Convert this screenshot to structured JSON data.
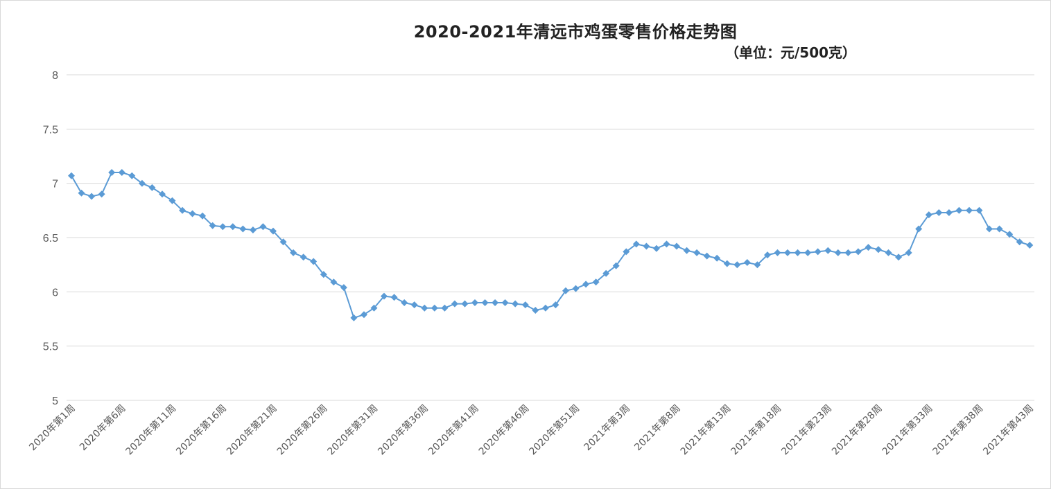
{
  "chart_data": {
    "type": "line",
    "title": "2020-2021年清远市鸡蛋零售价格走势图",
    "subtitle": "（单位：元/500克）",
    "xlabel": "",
    "ylabel": "",
    "ylim": [
      5,
      8
    ],
    "yticks": [
      "5",
      "5.5",
      "6",
      "6.5",
      "7",
      "7.5",
      "8"
    ],
    "grid": true,
    "legend": "none",
    "color": "#5b9bd5",
    "tick_labels": [
      "2020年第1周",
      "2020年第6周",
      "2020年第11周",
      "2020年第16周",
      "2020年第21周",
      "2020年第26周",
      "2020年第31周",
      "2020年第36周",
      "2020年第41周",
      "2020年第46周",
      "2020年第51周",
      "2021年第3周",
      "2021年第8周",
      "2021年第13周",
      "2021年第18周",
      "2021年第23周",
      "2021年第28周",
      "2021年第33周",
      "2021年第38周",
      "2021年第43周"
    ],
    "series": [
      {
        "values": [
          7.07,
          6.91,
          6.88,
          6.9,
          7.1,
          7.1,
          7.07,
          7.0,
          6.96,
          6.9,
          6.84,
          6.75,
          6.72,
          6.7,
          6.61,
          6.6,
          6.6,
          6.58,
          6.57,
          6.6,
          6.56,
          6.46,
          6.36,
          6.32,
          6.28,
          6.16,
          6.09,
          6.04,
          5.76,
          5.79,
          5.85,
          5.96,
          5.95,
          5.9,
          5.88,
          5.85,
          5.85,
          5.85,
          5.89,
          5.89,
          5.9,
          5.9,
          5.9,
          5.9,
          5.89,
          5.88,
          5.83,
          5.85,
          5.88,
          6.01,
          6.03,
          6.07,
          6.09,
          6.17,
          6.24,
          6.37,
          6.44,
          6.42,
          6.4,
          6.44,
          6.42,
          6.38,
          6.36,
          6.33,
          6.31,
          6.26,
          6.25,
          6.27,
          6.25,
          6.34,
          6.36,
          6.36,
          6.36,
          6.36,
          6.37,
          6.38,
          6.36,
          6.36,
          6.37,
          6.41,
          6.39,
          6.36,
          6.32,
          6.36,
          6.58,
          6.71,
          6.73,
          6.73,
          6.75,
          6.75,
          6.75,
          6.58,
          6.58,
          6.53,
          6.46,
          6.43
        ]
      }
    ]
  }
}
